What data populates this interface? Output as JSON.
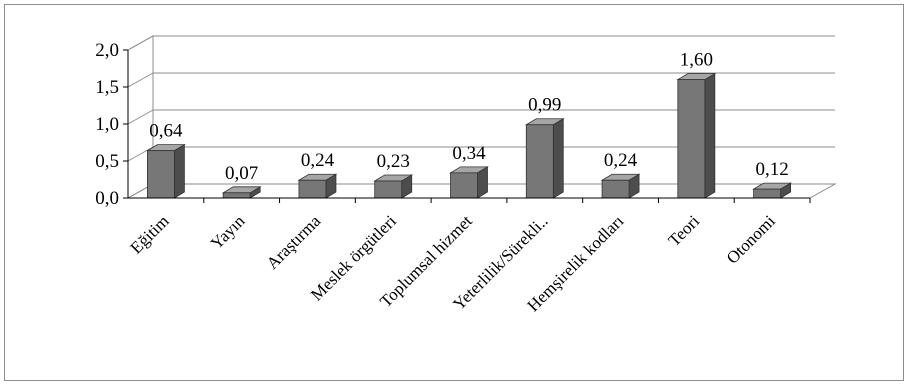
{
  "chart_data": {
    "type": "bar",
    "title": "",
    "xlabel": "",
    "ylabel": "",
    "ylim": [
      0,
      2.0
    ],
    "ytick_labels": [
      "0,0",
      "0,5",
      "1,0",
      "1,5",
      "2,0"
    ],
    "ytick_values": [
      0,
      0.5,
      1.0,
      1.5,
      2.0
    ],
    "categories": [
      "Eğitim",
      "Yayın",
      "Araştırma",
      "Meslek örgütleri",
      "Toplumsal hizmet",
      "Yeterlilik/Sürekli..",
      "Hemşirelik kodları",
      "Teori",
      "Otonomi"
    ],
    "values": [
      0.64,
      0.07,
      0.24,
      0.23,
      0.34,
      0.99,
      0.24,
      1.6,
      0.12
    ],
    "data_labels": [
      "0,64",
      "0,07",
      "0,24",
      "0,23",
      "0,34",
      "0,99",
      "0,24",
      "1,60",
      "0,12"
    ],
    "grid": true,
    "three_d": true,
    "legend": "none",
    "colors": {
      "bar_front": "#777777",
      "bar_side": "#4d4d4d",
      "bar_top": "#a6a6a6",
      "grid": "#8c8c8c"
    }
  }
}
